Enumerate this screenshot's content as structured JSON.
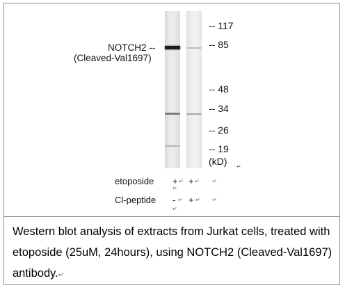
{
  "protein": {
    "name": "NOTCH2 --",
    "variant": "(Cleaved-Val1697)"
  },
  "mw_markers": [
    "-- 117",
    "-- 85",
    "-- 48",
    "-- 34",
    "-- 26",
    "-- 19"
  ],
  "mw_unit": "(kD)",
  "conditions": [
    {
      "label": "etoposide",
      "lane1": "+",
      "lane2": "+"
    },
    {
      "label": "Cl-peptide",
      "lane1": "-",
      "lane2": "+"
    }
  ],
  "caption": "Western blot analysis of extracts from Jurkat cells, treated with etoposide (25uM, 24hours), using NOTCH2 (Cleaved-Val1697) antibody.",
  "colors": {
    "band_dark": "#1a1a1a",
    "band_faint": "#9a9a9a",
    "border": "#8a8a8a"
  }
}
